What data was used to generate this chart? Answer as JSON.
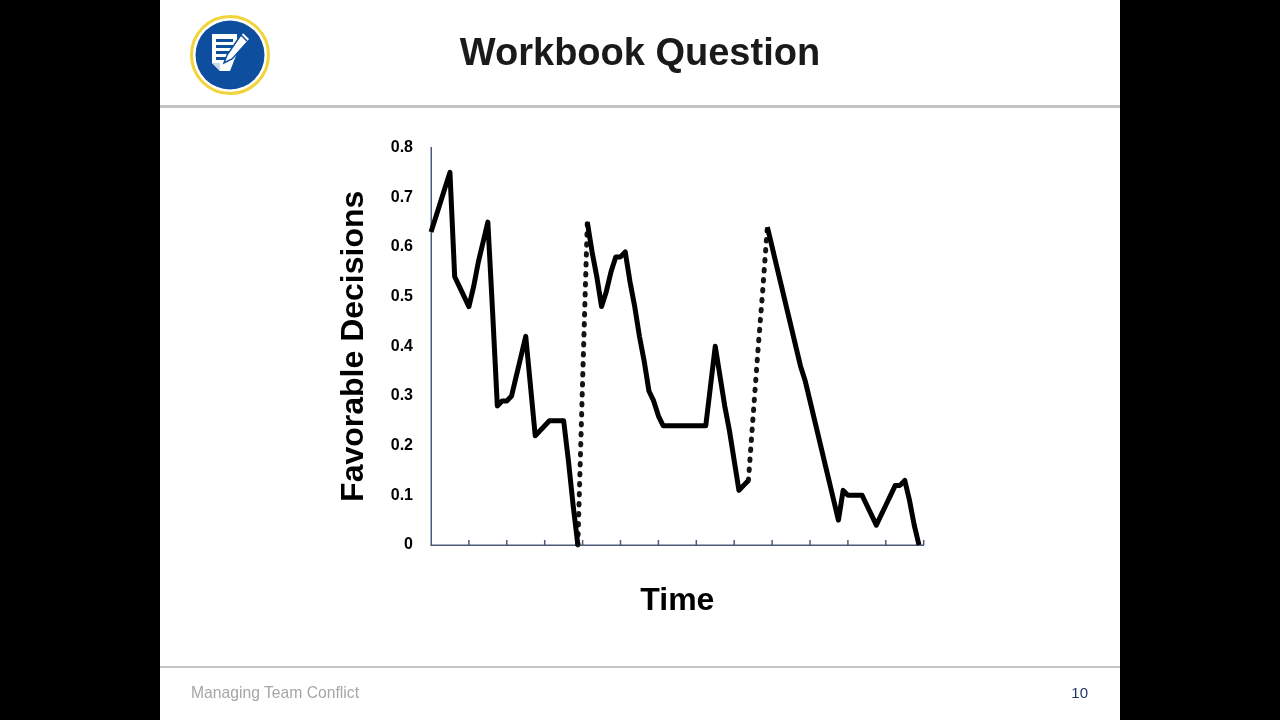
{
  "chart_data": {
    "type": "line",
    "title": "Workbook Question",
    "xlabel": "Time",
    "ylabel": "Favorable Decisions",
    "annotations": [
      "Managing Team Conflict",
      "10"
    ],
    "categories": [
      null,
      null,
      null,
      null,
      null,
      null,
      null,
      null,
      null,
      null,
      null,
      null,
      null,
      null,
      null,
      null,
      null,
      null,
      null,
      null,
      null,
      null,
      null,
      null,
      null,
      null,
      null,
      null,
      null,
      null,
      null,
      null,
      null,
      null,
      null,
      null,
      null,
      null,
      null,
      null,
      null,
      null,
      null,
      null,
      null,
      null,
      null,
      null,
      null,
      null,
      null,
      null,
      null,
      null,
      null,
      null,
      null,
      null,
      null,
      null,
      null,
      null,
      null,
      null,
      null,
      null,
      null,
      null,
      null,
      null,
      null,
      null,
      null,
      null,
      null,
      null,
      null,
      null,
      null,
      null,
      null,
      null,
      null,
      null,
      null,
      null,
      null,
      null,
      null,
      null,
      null,
      null,
      null,
      null,
      null,
      null,
      null,
      null,
      null,
      null,
      null,
      null,
      null,
      null,
      null
    ],
    "ylim": [
      0,
      0.8
    ],
    "yticks": [
      0,
      0.1,
      0.2,
      0.3,
      0.4,
      0.5,
      0.6,
      0.7,
      0.8
    ],
    "tick_labels": "y",
    "legend": false,
    "marker": "none",
    "series": [
      {
        "color": "#000000",
        "line_style": "solid",
        "values": [
          0.63,
          0.66,
          0.69,
          0.72,
          0.75,
          0.54,
          0.52,
          0.5,
          0.48,
          0.52,
          0.57,
          0.61,
          0.65,
          0.47,
          0.28,
          0.29,
          0.29,
          0.3,
          0.34,
          0.38,
          0.42,
          0.32,
          0.22,
          0.23,
          0.24,
          0.25,
          0.25,
          0.25,
          0.25,
          0.17,
          0.08,
          0,
          null,
          0.65,
          0.59,
          0.54,
          0.48,
          0.51,
          0.55,
          0.58,
          0.58,
          0.59,
          0.53,
          0.48,
          0.42,
          0.37,
          0.31,
          0.29,
          0.26,
          0.24,
          0.24,
          0.24,
          0.24,
          0.24,
          0.24,
          0.24,
          0.24,
          0.24,
          0.24,
          0.32,
          0.4,
          0.34,
          0.28,
          0.23,
          0.17,
          0.11,
          0.12,
          0.13,
          null,
          null,
          null,
          0.64,
          0.6,
          0.56,
          0.52,
          0.48,
          0.44,
          0.4,
          0.36,
          0.33,
          0.29,
          0.25,
          0.21,
          0.17,
          0.13,
          0.09,
          0.05,
          0.11,
          0.1,
          0.1,
          0.1,
          0.1,
          0.08,
          0.06,
          0.04,
          0.06,
          0.08,
          0.1,
          0.12,
          0.12,
          0.13,
          0.09,
          0.04,
          0,
          null
        ]
      },
      {
        "color": "#141414",
        "line_style": "dotted",
        "values": [
          null,
          null,
          null,
          null,
          null,
          null,
          null,
          null,
          null,
          null,
          null,
          null,
          null,
          null,
          null,
          null,
          null,
          null,
          null,
          null,
          null,
          null,
          null,
          null,
          null,
          null,
          null,
          null,
          null,
          null,
          null,
          0,
          0.33,
          0.65,
          null,
          null,
          null,
          null,
          null,
          null,
          null,
          null,
          null,
          null,
          null,
          null,
          null,
          null,
          null,
          null,
          null,
          null,
          null,
          null,
          null,
          null,
          null,
          null,
          null,
          null,
          null,
          null,
          null,
          null,
          null,
          null,
          null,
          0.13,
          0.26,
          0.39,
          0.51,
          0.64,
          null,
          null,
          null,
          null,
          null,
          null,
          null,
          null,
          null,
          null,
          null,
          null,
          null,
          null,
          null,
          null,
          null,
          null,
          null,
          null,
          null,
          null,
          null,
          null,
          null,
          null,
          null,
          null,
          null,
          null,
          null,
          null,
          null
        ]
      }
    ]
  }
}
